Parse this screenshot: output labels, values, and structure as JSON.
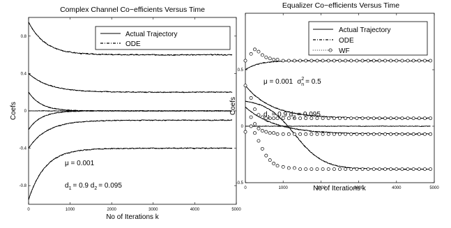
{
  "chart_data": [
    {
      "type": "line",
      "title": "Complex Channel Co−efficients Versus Time",
      "xlabel": "No of Iterations k",
      "ylabel": "Coefs",
      "xlim": [
        0,
        5000
      ],
      "ylim": [
        -1,
        1
      ],
      "xticks": [
        0,
        1000,
        2000,
        3000,
        4000,
        5000
      ],
      "xtick_labels": [
        "0",
        "1000",
        "2000",
        "3000",
        "4000",
        "5000"
      ],
      "yticks": [
        -0.8,
        -0.4,
        0,
        0.4,
        0.8
      ],
      "ytick_labels": [
        "-0.8",
        "-0.4",
        "0",
        "0.4",
        "0.8"
      ],
      "legend": {
        "position": "top-right",
        "entries": [
          "Actual Trajectory",
          "ODE"
        ]
      },
      "annotations": {
        "mu": "μ = 0.001",
        "d_line": {
          "d1_label": "d",
          "d1_sub": "1",
          "d1_value": "= 0.9 d",
          "d2_sub": "2",
          "d2_value": "= 0.095"
        }
      },
      "series": [
        {
          "start": 0.95,
          "final": 0.6,
          "tau": 400,
          "noise": 0.006,
          "seed": 3
        },
        {
          "start": -0.95,
          "final": -0.4,
          "tau": 400,
          "noise": 0.006,
          "seed": 5
        },
        {
          "start": 0.4,
          "final": 0.2,
          "tau": 500,
          "noise": 0.005,
          "seed": 7
        },
        {
          "start": -0.4,
          "final": -0.1,
          "tau": 450,
          "noise": 0.005,
          "seed": 11
        },
        {
          "start": 0.2,
          "final": 0.0,
          "tau": 300,
          "noise": 0.004,
          "seed": 13
        },
        {
          "start": -0.2,
          "final": 0.0,
          "tau": 300,
          "noise": 0.004,
          "seed": 17
        },
        {
          "start": 0.0,
          "final": 0.0,
          "tau": 300,
          "noise": 0.003,
          "seed": 19
        }
      ]
    },
    {
      "type": "line",
      "title": "Equalizer Co−efficients Versus Time",
      "xlabel": "No of Iterations k",
      "ylabel": "Coefs",
      "xlim": [
        0,
        5000
      ],
      "ylim": [
        -0.5,
        1
      ],
      "xticks": [
        0,
        1000,
        2000,
        3000,
        4000,
        5000
      ],
      "xtick_labels": [
        "0",
        "1000",
        "2000",
        "3000",
        "4000",
        "5000"
      ],
      "yticks": [
        -0.5,
        0,
        0.5
      ],
      "ytick_labels": [
        "-0.5",
        "0",
        "0.5"
      ],
      "legend": {
        "position": "top-right",
        "entries": [
          "Actual Trajectory",
          "ODE",
          "WF"
        ]
      },
      "annotations": {
        "mu_sigma": {
          "mu": "μ = 0.001",
          "sigma": "σ",
          "sigma_sup": "2",
          "sigma_sub": "n",
          "sigma_value": "= 0.5"
        },
        "d_line": {
          "d1_label": "d",
          "d1_sub": "1",
          "d1_value": "= 0.9 d",
          "d2_sub": "2",
          "d2_value": "= 0.095"
        }
      },
      "series": [
        {
          "kind": "rise",
          "start": 0.5,
          "final": 0.58,
          "tau": 350,
          "noise": 0.004,
          "seed": 23
        },
        {
          "kind": "fall",
          "start": 0.36,
          "final": 0.07,
          "tau": 700,
          "noise": 0.004,
          "seed": 29
        },
        {
          "kind": "fall",
          "start": 0.17,
          "final": -0.07,
          "tau": 800,
          "noise": 0.004,
          "seed": 31
        },
        {
          "kind": "sigmoid",
          "start": 0.24,
          "final": -0.38,
          "center": 1300,
          "width": 380,
          "noise": 0.004,
          "seed": 37
        },
        {
          "kind": "flat",
          "start": 0.0,
          "final": 0.0,
          "tau": 300,
          "noise": 0.003,
          "seed": 41
        }
      ],
      "wf_markers": [
        {
          "x": [
            0,
            150,
            250,
            350,
            450,
            550,
            650,
            750,
            850,
            1000,
            1150,
            1300,
            1450,
            1600,
            1750,
            1900,
            2050,
            2200,
            2350,
            2500,
            2650,
            2800,
            2950,
            3100,
            3250,
            3400,
            3550,
            3700,
            3850,
            4000,
            4150,
            4300,
            4450,
            4600,
            4750,
            4900
          ],
          "y": [
            0.58,
            0.64,
            0.68,
            0.66,
            0.63,
            0.61,
            0.6,
            0.59,
            0.59,
            0.58,
            0.58,
            0.58,
            0.58,
            0.58,
            0.58,
            0.58,
            0.58,
            0.58,
            0.58,
            0.58,
            0.58,
            0.58,
            0.58,
            0.58,
            0.58,
            0.58,
            0.58,
            0.58,
            0.58,
            0.58,
            0.58,
            0.58,
            0.58,
            0.58,
            0.58,
            0.58
          ]
        },
        {
          "x": [
            0,
            150,
            250,
            350,
            450,
            550,
            650,
            750,
            850,
            1000,
            1150,
            1300,
            1450,
            1600,
            1750,
            1900,
            2050,
            2200,
            2350,
            2500,
            2650,
            2800,
            2950,
            3100,
            3250,
            3400,
            3550,
            3700,
            3850,
            4000,
            4150,
            4300,
            4450,
            4600,
            4750,
            4900
          ],
          "y": [
            0.36,
            0.25,
            0.15,
            0.1,
            0.08,
            0.07,
            0.07,
            0.07,
            0.07,
            0.07,
            0.07,
            0.07,
            0.07,
            0.07,
            0.07,
            0.07,
            0.07,
            0.07,
            0.07,
            0.07,
            0.07,
            0.07,
            0.07,
            0.07,
            0.07,
            0.07,
            0.07,
            0.07,
            0.07,
            0.07,
            0.07,
            0.07,
            0.07,
            0.07,
            0.07,
            0.07
          ]
        },
        {
          "x": [
            0,
            150,
            250,
            350,
            450,
            550,
            650,
            750,
            850,
            1000,
            1150,
            1300,
            1450,
            1600,
            1750,
            1900,
            2050,
            2200,
            2350,
            2500,
            2650,
            2800,
            2950,
            3100,
            3250,
            3400,
            3550,
            3700,
            3850,
            4000,
            4150,
            4300,
            4450,
            4600,
            4750,
            4900
          ],
          "y": [
            -0.05,
            0.08,
            0.02,
            -0.02,
            -0.04,
            -0.05,
            -0.06,
            -0.06,
            -0.07,
            -0.07,
            -0.07,
            -0.07,
            -0.07,
            -0.07,
            -0.07,
            -0.07,
            -0.07,
            -0.07,
            -0.07,
            -0.07,
            -0.07,
            -0.07,
            -0.07,
            -0.07,
            -0.07,
            -0.07,
            -0.07,
            -0.07,
            -0.07,
            -0.07,
            -0.07,
            -0.07,
            -0.07,
            -0.07,
            -0.07,
            -0.07
          ]
        },
        {
          "x": [
            150,
            250,
            350,
            450,
            550,
            650,
            750,
            850,
            1000,
            1150,
            1300,
            1450,
            1600,
            1750,
            1900,
            2050,
            2200,
            2350,
            2500,
            2650,
            2800,
            2950,
            3100,
            3250,
            3400,
            3550,
            3700,
            3850,
            4000,
            4150,
            4300,
            4450,
            4600,
            4750,
            4900
          ],
          "y": [
            0.0,
            -0.06,
            -0.13,
            -0.2,
            -0.26,
            -0.3,
            -0.33,
            -0.35,
            -0.36,
            -0.37,
            -0.37,
            -0.38,
            -0.38,
            -0.38,
            -0.38,
            -0.38,
            -0.38,
            -0.38,
            -0.38,
            -0.38,
            -0.38,
            -0.38,
            -0.38,
            -0.38,
            -0.38,
            -0.38,
            -0.38,
            -0.38,
            -0.38,
            -0.38,
            -0.38,
            -0.38,
            -0.38,
            -0.38,
            -0.38
          ]
        }
      ]
    }
  ]
}
